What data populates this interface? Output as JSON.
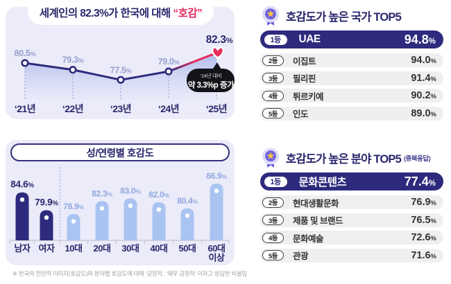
{
  "percent": "%",
  "colors": {
    "navy": "#2e2a7d",
    "navy_text": "#2a276c",
    "pink": "#e82c5c",
    "lavender_card": "#ebebf9",
    "light_blue_bar": "#a9c4f1",
    "age_label_blue": "#8fa8de",
    "periwinkle_label": "#98a1ce",
    "dotted_line": "#a0a8da",
    "row_gray": "#efeff1",
    "axis_gray": "#c9c9d8",
    "bubble_black": "#141418"
  },
  "trend": {
    "title_prefix": "세계인의 82.3%가 한국에 대해",
    "title_highlight": "“호감”",
    "points": [
      {
        "year": "‘21년",
        "value": 80.5,
        "label": "80.5%"
      },
      {
        "year": "‘22년",
        "value": 79.3,
        "label": "79.3%"
      },
      {
        "year": "‘23년",
        "value": 77.5,
        "label": "77.5%"
      },
      {
        "year": "‘24년",
        "value": 79.0,
        "label": "79.0%"
      },
      {
        "year": "‘25년",
        "value": 82.3,
        "label": "82.3%"
      }
    ],
    "callout_line1": "‘24년 대비",
    "callout_line2": "약 3.3%p 증가"
  },
  "demographics": {
    "title": "성/연령별 호감도",
    "bars": [
      {
        "category": "남자",
        "value": 84.6,
        "label": "84.6%",
        "group": "gender"
      },
      {
        "category": "여자",
        "value": 79.9,
        "label": "79.9%",
        "group": "gender"
      },
      {
        "category": "10대",
        "value": 78.9,
        "label": "78.9%",
        "group": "age"
      },
      {
        "category": "20대",
        "value": 82.3,
        "label": "82.3%",
        "group": "age"
      },
      {
        "category": "30대",
        "value": 83.0,
        "label": "83.0%",
        "group": "age"
      },
      {
        "category": "40대",
        "value": 82.0,
        "label": "82.0%",
        "group": "age"
      },
      {
        "category": "50대",
        "value": 80.4,
        "label": "80.4%",
        "group": "age"
      },
      {
        "category": "60대 이상",
        "value": 86.9,
        "label": "86.9%",
        "group": "age"
      }
    ]
  },
  "rankings": {
    "country": {
      "title": "호감도가 높은 국가 TOP5",
      "rows": [
        {
          "rank": "1등",
          "name": "UAE",
          "value": "94.8"
        },
        {
          "rank": "2등",
          "name": "이집트",
          "value": "94.0"
        },
        {
          "rank": "3등",
          "name": "필리핀",
          "value": "91.4"
        },
        {
          "rank": "4등",
          "name": "튀르키예",
          "value": "90.2"
        },
        {
          "rank": "5등",
          "name": "인도",
          "value": "89.0"
        }
      ]
    },
    "field": {
      "title": "호감도가 높은 분야 TOP5",
      "subtitle": "(중복응답)",
      "rows": [
        {
          "rank": "1등",
          "name": "문화콘텐츠",
          "value": "77.4"
        },
        {
          "rank": "2등",
          "name": "현대생활문화",
          "value": "76.9"
        },
        {
          "rank": "3등",
          "name": "제품 및 브랜드",
          "value": "76.5"
        },
        {
          "rank": "4등",
          "name": "문화예술",
          "value": "72.6"
        },
        {
          "rank": "5등",
          "name": "관광",
          "value": "71.6"
        }
      ]
    }
  },
  "footnote": "※ 한국의 전반적 이미지(호감도)와 분야별 호감도에 대해 ‘긍정적’, ‘매우 긍정적’ 이라고 응답한 비율임",
  "chart_data": [
    {
      "type": "line",
      "title": "세계인의 82.3%가 한국에 대해 “호감”",
      "x": [
        "‘21년",
        "‘22년",
        "‘23년",
        "‘24년",
        "‘25년"
      ],
      "y": [
        80.5,
        79.3,
        77.5,
        79.0,
        82.3
      ],
      "unit": "%",
      "ylim": [
        75,
        85
      ],
      "annotation": "‘24년 대비 약 3.3%p 증가",
      "highlight_last_point": true,
      "grid": false
    },
    {
      "type": "bar",
      "title": "성/연령별 호감도",
      "categories": [
        "남자",
        "여자",
        "10대",
        "20대",
        "30대",
        "40대",
        "50대",
        "60대 이상"
      ],
      "values": [
        84.6,
        79.9,
        78.9,
        82.3,
        83.0,
        82.0,
        80.4,
        86.9
      ],
      "unit": "%",
      "ylim": [
        72,
        90
      ],
      "group_split_after": "여자",
      "grid": false
    },
    {
      "type": "table",
      "title": "호감도가 높은 국가 TOP5",
      "rows": [
        [
          "1등",
          "UAE",
          "94.8%"
        ],
        [
          "2등",
          "이집트",
          "94.0%"
        ],
        [
          "3등",
          "필리핀",
          "91.4%"
        ],
        [
          "4등",
          "튀르키예",
          "90.2%"
        ],
        [
          "5등",
          "인도",
          "89.0%"
        ]
      ]
    },
    {
      "type": "table",
      "title": "호감도가 높은 분야 TOP5 (중복응답)",
      "rows": [
        [
          "1등",
          "문화콘텐츠",
          "77.4%"
        ],
        [
          "2등",
          "현대생활문화",
          "76.9%"
        ],
        [
          "3등",
          "제품 및 브랜드",
          "76.5%"
        ],
        [
          "4등",
          "문화예술",
          "72.6%"
        ],
        [
          "5등",
          "관광",
          "71.6%"
        ]
      ]
    }
  ]
}
